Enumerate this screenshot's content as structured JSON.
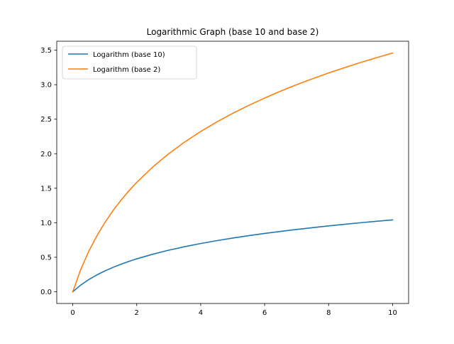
{
  "chart_data": {
    "type": "line",
    "title": "Logarithmic Graph (base 10 and base 2)",
    "xlabel": "",
    "ylabel": "",
    "xlim": [
      -0.5,
      10.5
    ],
    "ylim": [
      -0.17,
      3.63
    ],
    "xticks": [
      0,
      2,
      4,
      6,
      8,
      10
    ],
    "xtick_labels": [
      "0",
      "2",
      "4",
      "6",
      "8",
      "10"
    ],
    "yticks": [
      0.0,
      0.5,
      1.0,
      1.5,
      2.0,
      2.5,
      3.0,
      3.5
    ],
    "ytick_labels": [
      "0.0",
      "0.5",
      "1.0",
      "1.5",
      "2.0",
      "2.5",
      "3.0",
      "3.5"
    ],
    "grid": false,
    "legend_position": "top-left",
    "x": [
      0,
      0.25,
      0.5,
      0.75,
      1,
      1.25,
      1.5,
      1.75,
      2,
      2.5,
      3,
      3.5,
      4,
      4.5,
      5,
      5.5,
      6,
      6.5,
      7,
      7.5,
      8,
      8.5,
      9,
      9.5,
      10
    ],
    "series": [
      {
        "name": "Logarithm (base 10)",
        "color": "#1f77b4",
        "values": [
          0.0,
          0.097,
          0.176,
          0.243,
          0.301,
          0.352,
          0.398,
          0.439,
          0.477,
          0.544,
          0.602,
          0.653,
          0.699,
          0.74,
          0.778,
          0.813,
          0.845,
          0.875,
          0.903,
          0.929,
          0.954,
          0.978,
          1.0,
          1.021,
          1.041
        ]
      },
      {
        "name": "Logarithm (base 2)",
        "color": "#ff7f0e",
        "values": [
          0.0,
          0.322,
          0.585,
          0.807,
          1.0,
          1.17,
          1.322,
          1.459,
          1.585,
          1.807,
          2.0,
          2.17,
          2.322,
          2.459,
          2.585,
          2.7,
          2.807,
          2.907,
          3.0,
          3.087,
          3.17,
          3.248,
          3.322,
          3.392,
          3.459
        ]
      }
    ]
  }
}
